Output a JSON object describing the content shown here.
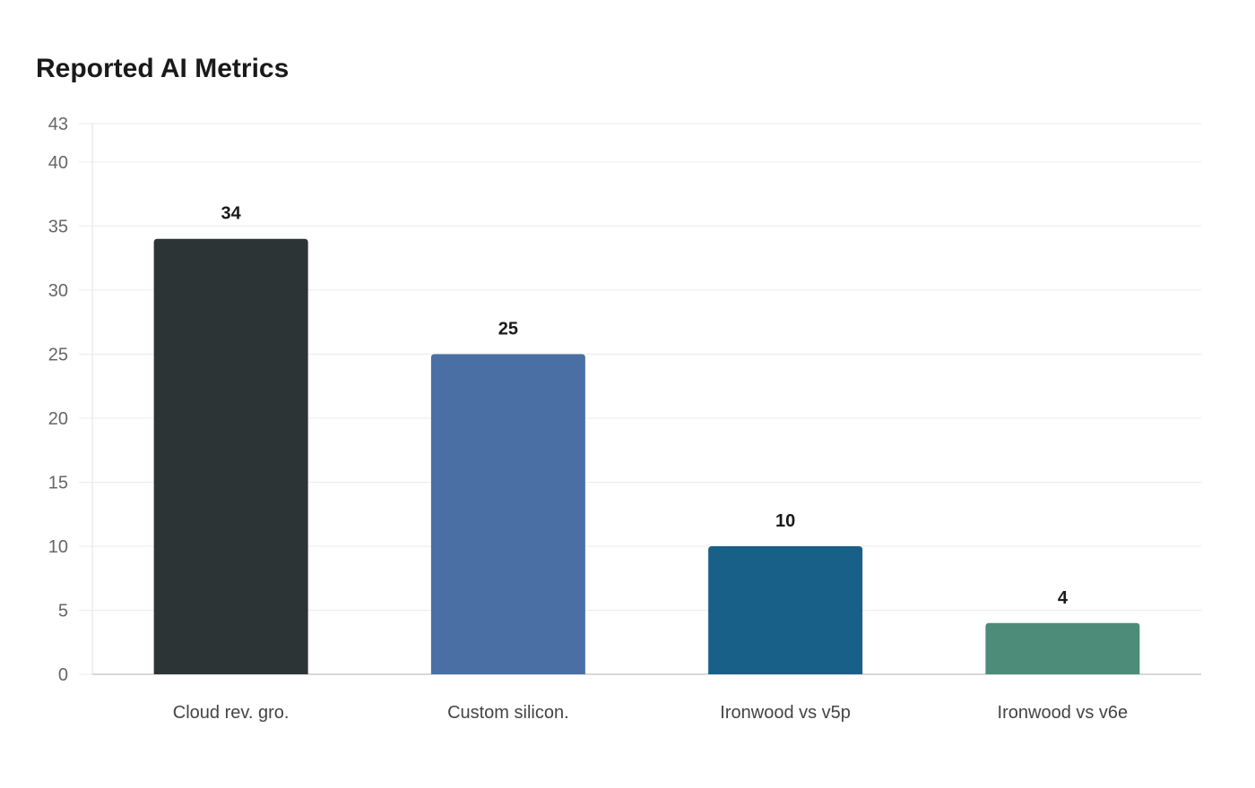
{
  "chart_data": {
    "type": "bar",
    "title": "Reported AI Metrics",
    "categories": [
      "Cloud rev. gro.",
      "Custom silicon.",
      "Ironwood vs v5p",
      "Ironwood vs v6e"
    ],
    "values": [
      34,
      25,
      10,
      4
    ],
    "data_labels": [
      "34",
      "25",
      "10",
      "4"
    ],
    "colors": [
      "#2d3436",
      "#4a6fa5",
      "#186088",
      "#4e8c7a"
    ],
    "xlabel": "",
    "ylabel": "",
    "ylim": [
      0,
      43
    ],
    "yticks": [
      0,
      5,
      10,
      15,
      20,
      25,
      30,
      35,
      40,
      43
    ],
    "grid": true,
    "legend": "none"
  }
}
